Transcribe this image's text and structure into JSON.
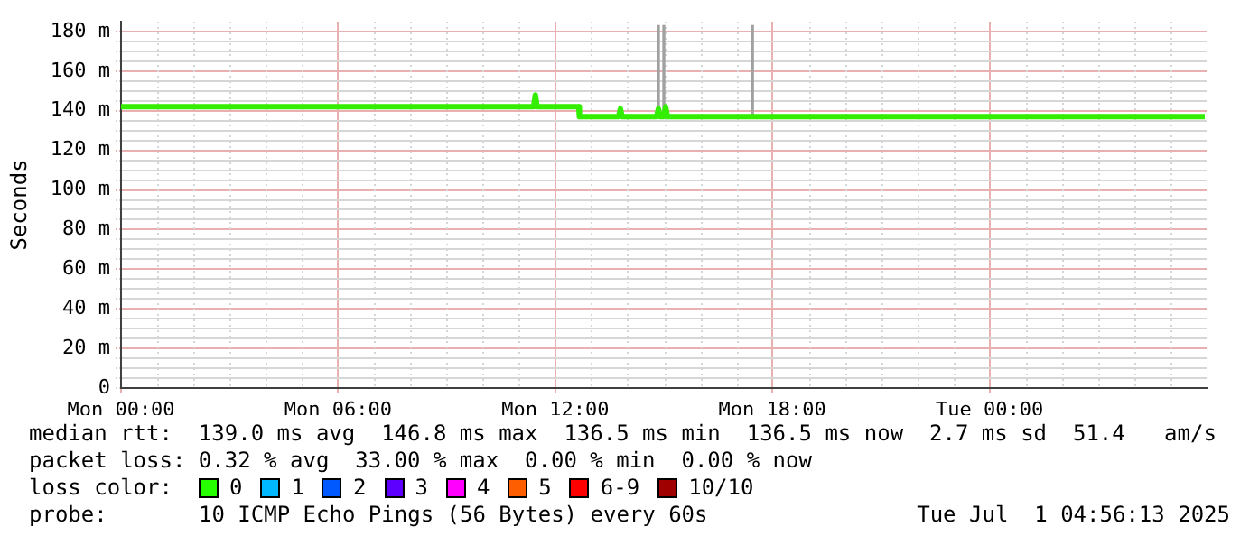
{
  "chart_data": {
    "type": "line",
    "ylabel": "Seconds",
    "xlim": [
      "2025-06-30T00:00",
      "2025-07-01T06:00"
    ],
    "ylim": [
      0,
      185
    ],
    "xticks": [
      {
        "value": "2025-06-30T00:00",
        "label": "Mon 00:00"
      },
      {
        "value": "2025-06-30T06:00",
        "label": "Mon 06:00"
      },
      {
        "value": "2025-06-30T12:00",
        "label": "Mon 12:00"
      },
      {
        "value": "2025-06-30T18:00",
        "label": "Mon 18:00"
      },
      {
        "value": "2025-07-01T00:00",
        "label": "Tue 00:00"
      }
    ],
    "yticks": [
      0,
      {
        "value": 5,
        "label": null
      },
      {
        "value": 10,
        "label": null
      },
      {
        "value": 15,
        "label": null
      },
      {
        "value": 20,
        "label": "20 m"
      },
      {
        "value": 25,
        "label": null
      },
      {
        "value": 30,
        "label": null
      },
      {
        "value": 35,
        "label": null
      },
      {
        "value": 40,
        "label": "40 m"
      },
      {
        "value": 45,
        "label": null
      },
      {
        "value": 50,
        "label": null
      },
      {
        "value": 55,
        "label": null
      },
      {
        "value": 60,
        "label": "60 m"
      },
      {
        "value": 65,
        "label": null
      },
      {
        "value": 70,
        "label": null
      },
      {
        "value": 75,
        "label": null
      },
      {
        "value": 80,
        "label": "80 m"
      },
      {
        "value": 85,
        "label": null
      },
      {
        "value": 90,
        "label": null
      },
      {
        "value": 95,
        "label": null
      },
      {
        "value": 100,
        "label": "100 m"
      },
      {
        "value": 105,
        "label": null
      },
      {
        "value": 110,
        "label": null
      },
      {
        "value": 115,
        "label": null
      },
      {
        "value": 120,
        "label": "120 m"
      },
      {
        "value": 125,
        "label": null
      },
      {
        "value": 130,
        "label": null
      },
      {
        "value": 135,
        "label": null
      },
      {
        "value": 140,
        "label": "140 m"
      },
      {
        "value": 145,
        "label": null
      },
      {
        "value": 150,
        "label": null
      },
      {
        "value": 155,
        "label": null
      },
      {
        "value": 160,
        "label": "160 m"
      },
      {
        "value": 165,
        "label": null
      },
      {
        "value": 170,
        "label": null
      },
      {
        "value": 175,
        "label": null
      },
      {
        "value": 180,
        "label": "180 m"
      }
    ],
    "grid": true,
    "marker": "none",
    "line_style": "solid",
    "series": [
      {
        "type": "bar",
        "color": "#a0a0a0",
        "x": [
          "2025-06-30T14:51",
          "2025-06-30T15:00",
          "2025-06-30T17:27"
        ],
        "base": [
          137,
          137,
          137
        ],
        "values": [
          46,
          46,
          46
        ]
      },
      {
        "color": "#33ee00",
        "x": [
          "2025-06-30T00:00",
          "2025-06-30T11:24",
          "2025-06-30T11:27",
          "2025-06-30T11:30",
          "2025-06-30T12:39",
          "2025-06-30T12:40",
          "2025-06-30T13:45",
          "2025-06-30T13:48",
          "2025-06-30T13:51",
          "2025-06-30T14:48",
          "2025-06-30T14:51",
          "2025-06-30T14:54",
          "2025-06-30T15:00",
          "2025-06-30T15:03",
          "2025-06-30T15:06",
          "2025-07-01T05:57"
        ],
        "values": [
          142,
          142,
          148,
          142,
          142,
          137,
          137,
          141,
          137,
          137,
          141,
          137,
          137,
          142,
          137,
          137
        ]
      }
    ],
    "annotations": [
      "median rtt:  139.0 ms avg  146.8 ms max  136.5 ms min  136.5 ms now  2.7 ms sd  51.4   am/s",
      "packet loss: 0.32 % avg  33.00 % max  0.00 % min  0.00 % now",
      "loss color:",
      "0",
      "1",
      "2",
      "3",
      "4",
      "5",
      "6-9",
      "10/10",
      "probe:",
      "10 ICMP Echo Pings (56 Bytes) every 60s",
      "Tue Jul  1 04:56:13 2025"
    ]
  }
}
